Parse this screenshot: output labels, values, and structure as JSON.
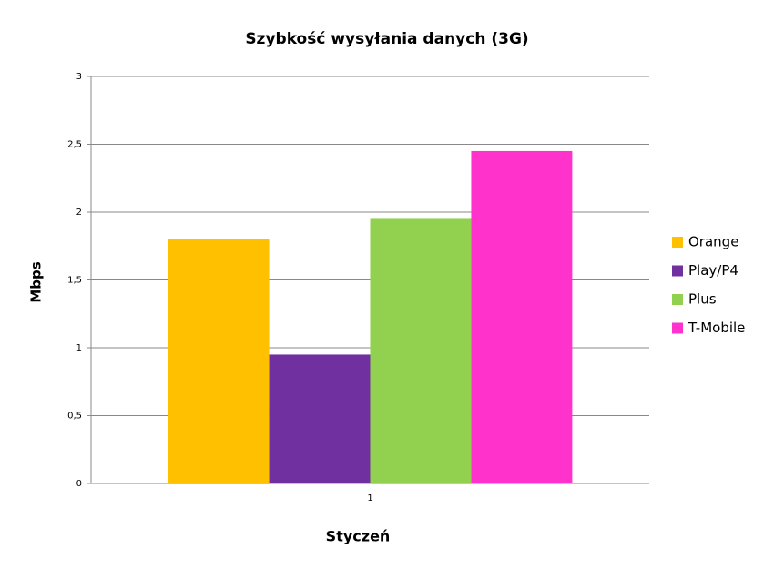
{
  "chart_data": {
    "type": "bar",
    "title": "Szybkość wysyłania danych (3G)",
    "x_label": "Styczeń",
    "y_label": "Mbps",
    "categories": [
      "1"
    ],
    "series": [
      {
        "name": "Orange",
        "color": "#ffc000",
        "values": [
          1.8
        ]
      },
      {
        "name": "Play/P4",
        "color": "#7030a0",
        "values": [
          0.95
        ]
      },
      {
        "name": "Plus",
        "color": "#92d050",
        "values": [
          1.95
        ]
      },
      {
        "name": "T-Mobile",
        "color": "#ff33cc",
        "values": [
          2.45
        ]
      }
    ],
    "ylim": [
      0,
      3
    ],
    "yticks": [
      0,
      {
        "value": 0.5,
        "label": "0,5"
      },
      1,
      {
        "value": 1.5,
        "label": "1,5"
      },
      2,
      {
        "value": 2.5,
        "label": "2,5"
      },
      3
    ],
    "grid": true,
    "legend": "right"
  }
}
